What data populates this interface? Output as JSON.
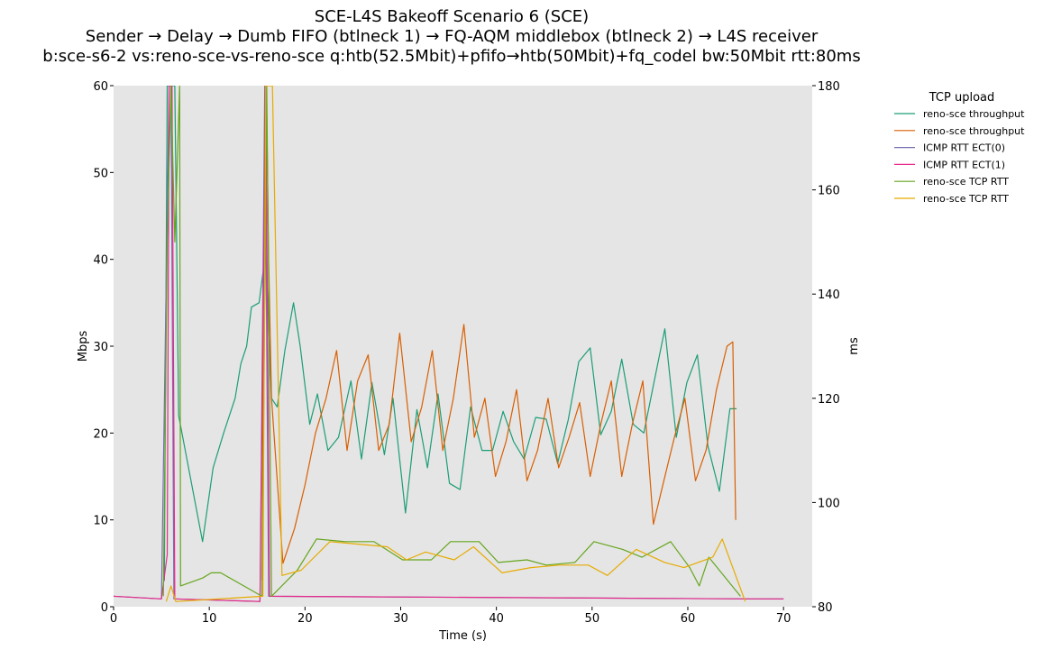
{
  "chart_data": {
    "type": "line",
    "title": "SCE-L4S Bakeoff Scenario 6 (SCE)",
    "subtitle": "Sender → Delay → Dumb FIFO (btlneck 1) → FQ-AQM middlebox (btlneck 2) → L4S receiver",
    "subtitle2": "b:sce-s6-2 vs:reno-sce-vs-reno-sce q:htb(52.5Mbit)+pfifo→htb(50Mbit)+fq_codel bw:50Mbit rtt:80ms",
    "xlabel": "Time (s)",
    "ylabel": "Mbps",
    "ylabel_right": "ms",
    "xlim": [
      0,
      73
    ],
    "ylim": [
      0,
      60
    ],
    "ylim_right": [
      80,
      180
    ],
    "x_ticks": [
      0,
      10,
      20,
      30,
      40,
      50,
      60,
      70
    ],
    "y_ticks": [
      0,
      10,
      20,
      30,
      40,
      50,
      60
    ],
    "y_ticks_right": [
      80,
      100,
      120,
      140,
      160,
      180
    ],
    "grid": false,
    "legend_title": "TCP upload",
    "legend_placement": "outside-right",
    "series": [
      {
        "name": "reno-sce throughput",
        "axis": "left",
        "color": "#1b9e77",
        "x": [
          5.3,
          5.6,
          6.2,
          6.4,
          6.8,
          9.3,
          10.4,
          11.5,
          12.7,
          13.3,
          13.9,
          14.4,
          15.2,
          15.9,
          16.5,
          17.1,
          17.9,
          18.8,
          19.5,
          20.5,
          21.3,
          22.4,
          23.5,
          24.8,
          25.9,
          27.0,
          28.3,
          29.2,
          30.5,
          31.7,
          32.8,
          33.9,
          35.1,
          36.2,
          37.3,
          38.5,
          39.6,
          40.7,
          41.8,
          42.9,
          44.1,
          45.2,
          46.4,
          47.5,
          48.6,
          49.8,
          50.9,
          52.0,
          53.1,
          54.3,
          55.4,
          56.5,
          57.6,
          58.8,
          59.9,
          61.0,
          62.1,
          63.3,
          64.4,
          65.1
        ],
        "values": [
          3,
          60,
          60,
          60,
          22,
          7.5,
          16,
          20,
          24,
          28,
          30,
          34.5,
          35,
          41,
          24,
          23,
          29.5,
          35,
          30,
          21,
          24.5,
          18,
          19.5,
          26,
          17,
          25.8,
          17.5,
          24,
          10.8,
          22.7,
          16,
          24.5,
          14.2,
          13.5,
          23,
          18,
          18,
          22.5,
          19,
          17,
          21.8,
          21.6,
          16.5,
          21.5,
          28.2,
          29.8,
          19.8,
          22.5,
          28.5,
          21,
          20,
          26,
          32,
          19.5,
          25.8,
          29,
          18.5,
          13.3,
          22.8,
          22.8
        ]
      },
      {
        "name": "reno-sce throughput",
        "axis": "left",
        "color": "#d95f02",
        "x": [
          15.5,
          15.8,
          16.0,
          16.2,
          16.5,
          17.7,
          18.9,
          20.0,
          21.1,
          22.2,
          23.3,
          24.4,
          25.5,
          26.6,
          27.7,
          28.8,
          29.9,
          31.1,
          32.2,
          33.3,
          34.4,
          35.5,
          36.6,
          37.7,
          38.8,
          39.9,
          41.0,
          42.1,
          43.2,
          44.3,
          45.4,
          46.5,
          47.6,
          48.7,
          49.8,
          50.9,
          52.0,
          53.1,
          54.2,
          55.3,
          56.4,
          57.5,
          58.6,
          59.7,
          60.8,
          61.9,
          63.0,
          64.1,
          64.7,
          65.0
        ],
        "values": [
          3,
          54,
          57,
          40,
          24,
          5,
          9,
          14,
          20,
          24,
          29.5,
          18,
          26,
          29,
          18,
          21,
          31.5,
          19,
          23,
          29.5,
          18,
          24,
          32.5,
          19.5,
          24,
          15,
          19,
          25,
          14.5,
          18,
          24,
          16,
          19.5,
          23.5,
          15,
          21,
          26,
          15,
          21,
          26,
          9.5,
          14.5,
          19.5,
          24,
          14.5,
          18,
          25,
          30,
          30.5,
          10
        ]
      },
      {
        "name": "ICMP RTT ECT(0)",
        "axis": "right",
        "color": "#7570b3",
        "x": [
          0,
          5.0,
          5.8,
          6.0,
          6.3,
          15.3,
          15.8,
          16.2,
          66.5,
          70
        ],
        "values": [
          82,
          81.5,
          180,
          180,
          81.5,
          81,
          180,
          82,
          81.5,
          81.5
        ]
      },
      {
        "name": "ICMP RTT ECT(1)",
        "axis": "right",
        "color": "#e7298a",
        "x": [
          0,
          5.0,
          5.6,
          5.8,
          6.1,
          6.4,
          15.3,
          15.9,
          16.3,
          66.5,
          70
        ],
        "values": [
          82,
          81.5,
          90,
          180,
          180,
          81.5,
          81,
          180,
          82,
          81.5,
          81.5
        ]
      },
      {
        "name": "reno-sce TCP RTT",
        "axis": "right",
        "color": "#66a61e",
        "x": [
          5.2,
          5.6,
          6.0,
          6.4,
          6.9,
          7.0,
          9.3,
          10.2,
          11.2,
          15.5,
          16.0,
          16.5,
          19.2,
          21.2,
          24.2,
          27.2,
          30.2,
          33.2,
          35.2,
          38.2,
          40.2,
          43.2,
          45.2,
          48.2,
          50.2,
          53.2,
          55.2,
          58.2,
          60.2,
          61.2,
          62.2,
          65.5
        ],
        "values": [
          82,
          150,
          180,
          150,
          180,
          84,
          85.5,
          86.5,
          86.5,
          82,
          180,
          82,
          87,
          93,
          92.5,
          92.5,
          89,
          89,
          92.5,
          92.5,
          88.5,
          89,
          88,
          88.5,
          92.5,
          91,
          89.5,
          92.5,
          87.5,
          84,
          89.5,
          82
        ]
      },
      {
        "name": "reno-sce TCP RTT",
        "axis": "right",
        "color": "#e6ab02",
        "x": [
          5.5,
          6.0,
          6.5,
          15.6,
          15.9,
          16.2,
          16.6,
          17.6,
          19.6,
          22.6,
          25.6,
          28.6,
          30.6,
          32.6,
          35.6,
          37.6,
          40.6,
          43.6,
          46.6,
          49.6,
          51.6,
          54.6,
          57.6,
          59.6,
          62.6,
          63.6,
          66.0
        ],
        "values": [
          81,
          84,
          81,
          82,
          180,
          180,
          180,
          86,
          87,
          92.5,
          92,
          91.5,
          89,
          90.5,
          89,
          91.5,
          86.5,
          87.5,
          88,
          88,
          86,
          91,
          88.5,
          87.5,
          89.5,
          93,
          81
        ]
      }
    ]
  }
}
